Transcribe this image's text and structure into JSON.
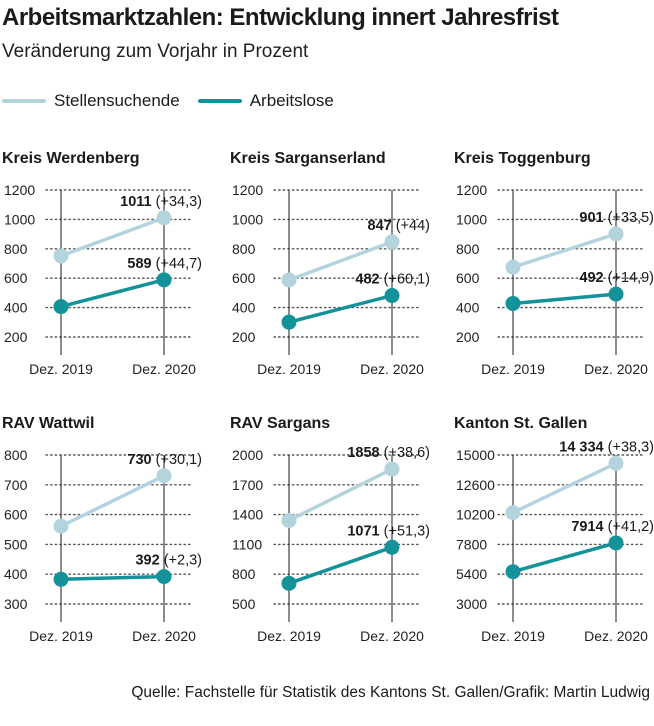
{
  "title": "Arbeitsmarktzahlen: Entwicklung innert Jahresfrist",
  "subtitle": "Veränderung zum Vorjahr in Prozent",
  "legend": [
    {
      "label": "Stellensuchende",
      "color": "#b3d4dd"
    },
    {
      "label": "Arbeitslose",
      "color": "#13929a"
    }
  ],
  "source": "Quelle: Fachstelle für Statistik des Kantons St. Gallen/Grafik: Martin Ludwig",
  "chart_data": [
    {
      "type": "line",
      "title": "Kreis Werdenberg",
      "categories": [
        "Dez. 2019",
        "Dez. 2020"
      ],
      "yticks": [
        "1200",
        "1000",
        "800",
        "600",
        "400",
        "200"
      ],
      "ylim": [
        200,
        1200
      ],
      "series": [
        {
          "name": "Stellensuchende",
          "values": [
            752,
            1011
          ],
          "label_value": "1011",
          "label_change": "(+34,3)"
        },
        {
          "name": "Arbeitslose",
          "values": [
            407,
            589
          ],
          "label_value": "589",
          "label_change": "(+44,7)"
        }
      ]
    },
    {
      "type": "line",
      "title": "Kreis Sarganserland",
      "categories": [
        "Dez. 2019",
        "Dez. 2020"
      ],
      "yticks": [
        "1200",
        "1000",
        "800",
        "600",
        "400",
        "200"
      ],
      "ylim": [
        200,
        1200
      ],
      "series": [
        {
          "name": "Stellensuchende",
          "values": [
            588,
            847
          ],
          "label_value": "847",
          "label_change": "(+44)"
        },
        {
          "name": "Arbeitslose",
          "values": [
            301,
            482
          ],
          "label_value": "482",
          "label_change": "(+60,1)"
        }
      ]
    },
    {
      "type": "line",
      "title": "Kreis Toggenburg",
      "categories": [
        "Dez. 2019",
        "Dez. 2020"
      ],
      "yticks": [
        "1200",
        "1000",
        "800",
        "600",
        "400",
        "200"
      ],
      "ylim": [
        200,
        1200
      ],
      "series": [
        {
          "name": "Stellensuchende",
          "values": [
            675,
            901
          ],
          "label_value": "901",
          "label_change": "(+33,5)"
        },
        {
          "name": "Arbeitslose",
          "values": [
            428,
            492
          ],
          "label_value": "492",
          "label_change": "(+14,9)"
        }
      ]
    },
    {
      "type": "line",
      "title": "RAV Wattwil",
      "categories": [
        "Dez. 2019",
        "Dez. 2020"
      ],
      "yticks": [
        "800",
        "700",
        "600",
        "500",
        "400",
        "300"
      ],
      "ylim": [
        300,
        800
      ],
      "series": [
        {
          "name": "Stellensuchende",
          "values": [
            561,
            730
          ],
          "label_value": "730",
          "label_change": "(+30,1)"
        },
        {
          "name": "Arbeitslose",
          "values": [
            383,
            392
          ],
          "label_value": "392",
          "label_change": "(+2,3)"
        }
      ]
    },
    {
      "type": "line",
      "title": "RAV Sargans",
      "categories": [
        "Dez. 2019",
        "Dez. 2020"
      ],
      "yticks": [
        "2000",
        "1700",
        "1400",
        "1100",
        "800",
        "500"
      ],
      "ylim": [
        500,
        2000
      ],
      "series": [
        {
          "name": "Stellensuchende",
          "values": [
            1341,
            1858
          ],
          "label_value": "1858",
          "label_change": "(+38,6)"
        },
        {
          "name": "Arbeitslose",
          "values": [
            708,
            1071
          ],
          "label_value": "1071",
          "label_change": "(+51,3)"
        }
      ]
    },
    {
      "type": "line",
      "title": "Kanton St. Gallen",
      "categories": [
        "Dez. 2019",
        "Dez. 2020"
      ],
      "yticks": [
        "15000",
        "12600",
        "10200",
        "7800",
        "5400",
        "3000"
      ],
      "ylim": [
        3000,
        15000
      ],
      "series": [
        {
          "name": "Stellensuchende",
          "values": [
            10364,
            14334
          ],
          "label_value": "14 334",
          "label_change": "(+38,3)"
        },
        {
          "name": "Arbeitslose",
          "values": [
            5602,
            7914
          ],
          "label_value": "7914",
          "label_change": "(+41,2)"
        }
      ]
    }
  ]
}
